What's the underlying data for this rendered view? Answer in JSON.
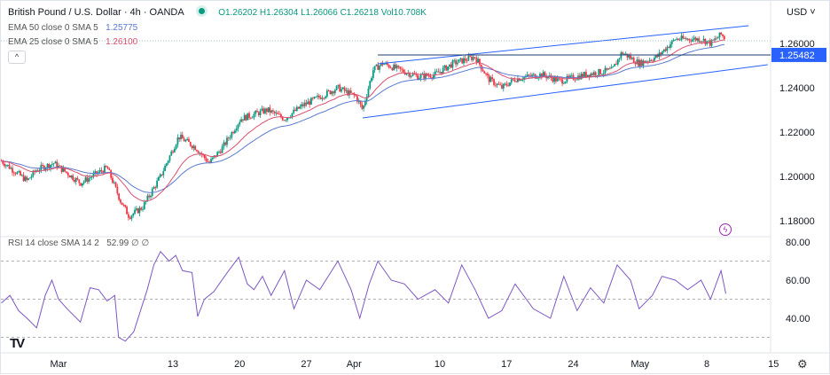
{
  "header": {
    "title": "British Pound / U.S. Dollar · 4h · OANDA",
    "open": "O1.26202",
    "high": "H1.26304",
    "low": "L1.26066",
    "close": "C1.26218",
    "vol": "Vol10.708K"
  },
  "indicators": [
    {
      "label": "EMA 50 close 0 SMA 5",
      "value": "1.25775",
      "color": "#5b79d0"
    },
    {
      "label": "EMA 25 close 0 SMA 5",
      "value": "1.26100",
      "color": "#d9506e"
    }
  ],
  "collapse_icon": "chevron-up-icon",
  "currency": "USD",
  "rsi_legend": {
    "label": "RSI 14 close SMA 14 2",
    "value": "52.99",
    "extra": "∅ ∅"
  },
  "colors": {
    "up": "#089981",
    "down": "#f23645",
    "rsi": "#7e57c2",
    "channel": "#2962ff",
    "badge": "#2962ff"
  },
  "chart_data": {
    "type": "candlestick",
    "x_unit": "days from Mar 1",
    "price_ticks": [
      "1.26000",
      "1.24000",
      "1.22000",
      "1.20000",
      "1.18000"
    ],
    "price_tick_values": [
      1.26,
      1.24,
      1.22,
      1.2,
      1.18
    ],
    "price_range": [
      1.171,
      1.275
    ],
    "marked_level": {
      "value": 1.25482,
      "label": "1.25482"
    },
    "price_path": [
      [
        -6.0,
        1.207
      ],
      [
        -3.3,
        1.198
      ],
      [
        -2.3,
        1.203
      ],
      [
        -0.5,
        1.206
      ],
      [
        2.3,
        1.197
      ],
      [
        5.1,
        1.204
      ],
      [
        6.5,
        1.189
      ],
      [
        7.4,
        1.182
      ],
      [
        8.8,
        1.186
      ],
      [
        10.7,
        1.2
      ],
      [
        12.6,
        1.218
      ],
      [
        14.4,
        1.213
      ],
      [
        15.8,
        1.206
      ],
      [
        17.2,
        1.213
      ],
      [
        19.1,
        1.226
      ],
      [
        21.9,
        1.23
      ],
      [
        23.7,
        1.226
      ],
      [
        25.6,
        1.232
      ],
      [
        29.3,
        1.24
      ],
      [
        31.2,
        1.236
      ],
      [
        31.9,
        1.23
      ],
      [
        33.0,
        1.248
      ],
      [
        34.0,
        1.251
      ],
      [
        37.7,
        1.245
      ],
      [
        39.5,
        1.246
      ],
      [
        41.4,
        1.251
      ],
      [
        43.7,
        1.254
      ],
      [
        45.1,
        1.244
      ],
      [
        46.5,
        1.24
      ],
      [
        47.9,
        1.244
      ],
      [
        50.7,
        1.246
      ],
      [
        52.6,
        1.243
      ],
      [
        55.3,
        1.246
      ],
      [
        58.1,
        1.248
      ],
      [
        59.1,
        1.256
      ],
      [
        60.9,
        1.251
      ],
      [
        62.8,
        1.254
      ],
      [
        64.7,
        1.262
      ],
      [
        67.4,
        1.262
      ],
      [
        68.4,
        1.26
      ],
      [
        69.5,
        1.264
      ],
      [
        70.0,
        1.262
      ]
    ],
    "channel_upper": [
      [
        33.5,
        1.2508
      ],
      [
        72.4,
        1.268
      ]
    ],
    "channel_lower": [
      [
        31.9,
        1.2264
      ],
      [
        74.4,
        1.2504
      ]
    ],
    "rsi_ticks": [
      "80.00",
      "60.00",
      "40.00"
    ],
    "rsi_tick_values": [
      80,
      60,
      40
    ],
    "rsi_levels": [
      70,
      50,
      30
    ],
    "rsi_range": [
      24,
      84
    ],
    "rsi_path": [
      [
        -6.0,
        48
      ],
      [
        -5.1,
        52
      ],
      [
        -4.2,
        44
      ],
      [
        -3.3,
        40
      ],
      [
        -2.3,
        35
      ],
      [
        -1.4,
        52
      ],
      [
        -0.7,
        60
      ],
      [
        0,
        50
      ],
      [
        0.9,
        45
      ],
      [
        2.3,
        38
      ],
      [
        3.3,
        56
      ],
      [
        4.2,
        55
      ],
      [
        5.1,
        49
      ],
      [
        5.9,
        52
      ],
      [
        6.3,
        30
      ],
      [
        7.0,
        28
      ],
      [
        7.9,
        33
      ],
      [
        9.3,
        55
      ],
      [
        10.0,
        68
      ],
      [
        10.7,
        75
      ],
      [
        11.6,
        70
      ],
      [
        12.3,
        73
      ],
      [
        13.0,
        65
      ],
      [
        14.0,
        64
      ],
      [
        14.6,
        41
      ],
      [
        15.3,
        50
      ],
      [
        16.3,
        54
      ],
      [
        17.7,
        64
      ],
      [
        18.9,
        72
      ],
      [
        19.8,
        58
      ],
      [
        20.5,
        55
      ],
      [
        21.4,
        62
      ],
      [
        22.3,
        52
      ],
      [
        23.7,
        65
      ],
      [
        24.7,
        45
      ],
      [
        26.0,
        60
      ],
      [
        27.4,
        55
      ],
      [
        29.3,
        70
      ],
      [
        30.7,
        55
      ],
      [
        31.6,
        40
      ],
      [
        32.6,
        58
      ],
      [
        33.5,
        70
      ],
      [
        34.9,
        60
      ],
      [
        36.3,
        58
      ],
      [
        37.7,
        50
      ],
      [
        39.5,
        55
      ],
      [
        40.9,
        48
      ],
      [
        42.3,
        68
      ],
      [
        43.7,
        55
      ],
      [
        45.1,
        40
      ],
      [
        46.5,
        44
      ],
      [
        47.9,
        58
      ],
      [
        49.8,
        45
      ],
      [
        51.6,
        40
      ],
      [
        53.0,
        62
      ],
      [
        54.4,
        44
      ],
      [
        55.8,
        56
      ],
      [
        57.2,
        48
      ],
      [
        58.6,
        68
      ],
      [
        60.0,
        60
      ],
      [
        60.9,
        45
      ],
      [
        62.3,
        52
      ],
      [
        63.3,
        62
      ],
      [
        64.7,
        60
      ],
      [
        66.0,
        55
      ],
      [
        67.4,
        60
      ],
      [
        68.4,
        50
      ],
      [
        69.5,
        65
      ],
      [
        70.0,
        53
      ]
    ],
    "time_ticks": [
      {
        "label": "Mar",
        "day": 0
      },
      {
        "label": "13",
        "day": 12
      },
      {
        "label": "20",
        "day": 19
      },
      {
        "label": "27",
        "day": 26
      },
      {
        "label": "Apr",
        "day": 31
      },
      {
        "label": "10",
        "day": 40
      },
      {
        "label": "17",
        "day": 47
      },
      {
        "label": "24",
        "day": 54
      },
      {
        "label": "May",
        "day": 61
      },
      {
        "label": "8",
        "day": 68
      },
      {
        "label": "15",
        "day": 75
      }
    ]
  }
}
